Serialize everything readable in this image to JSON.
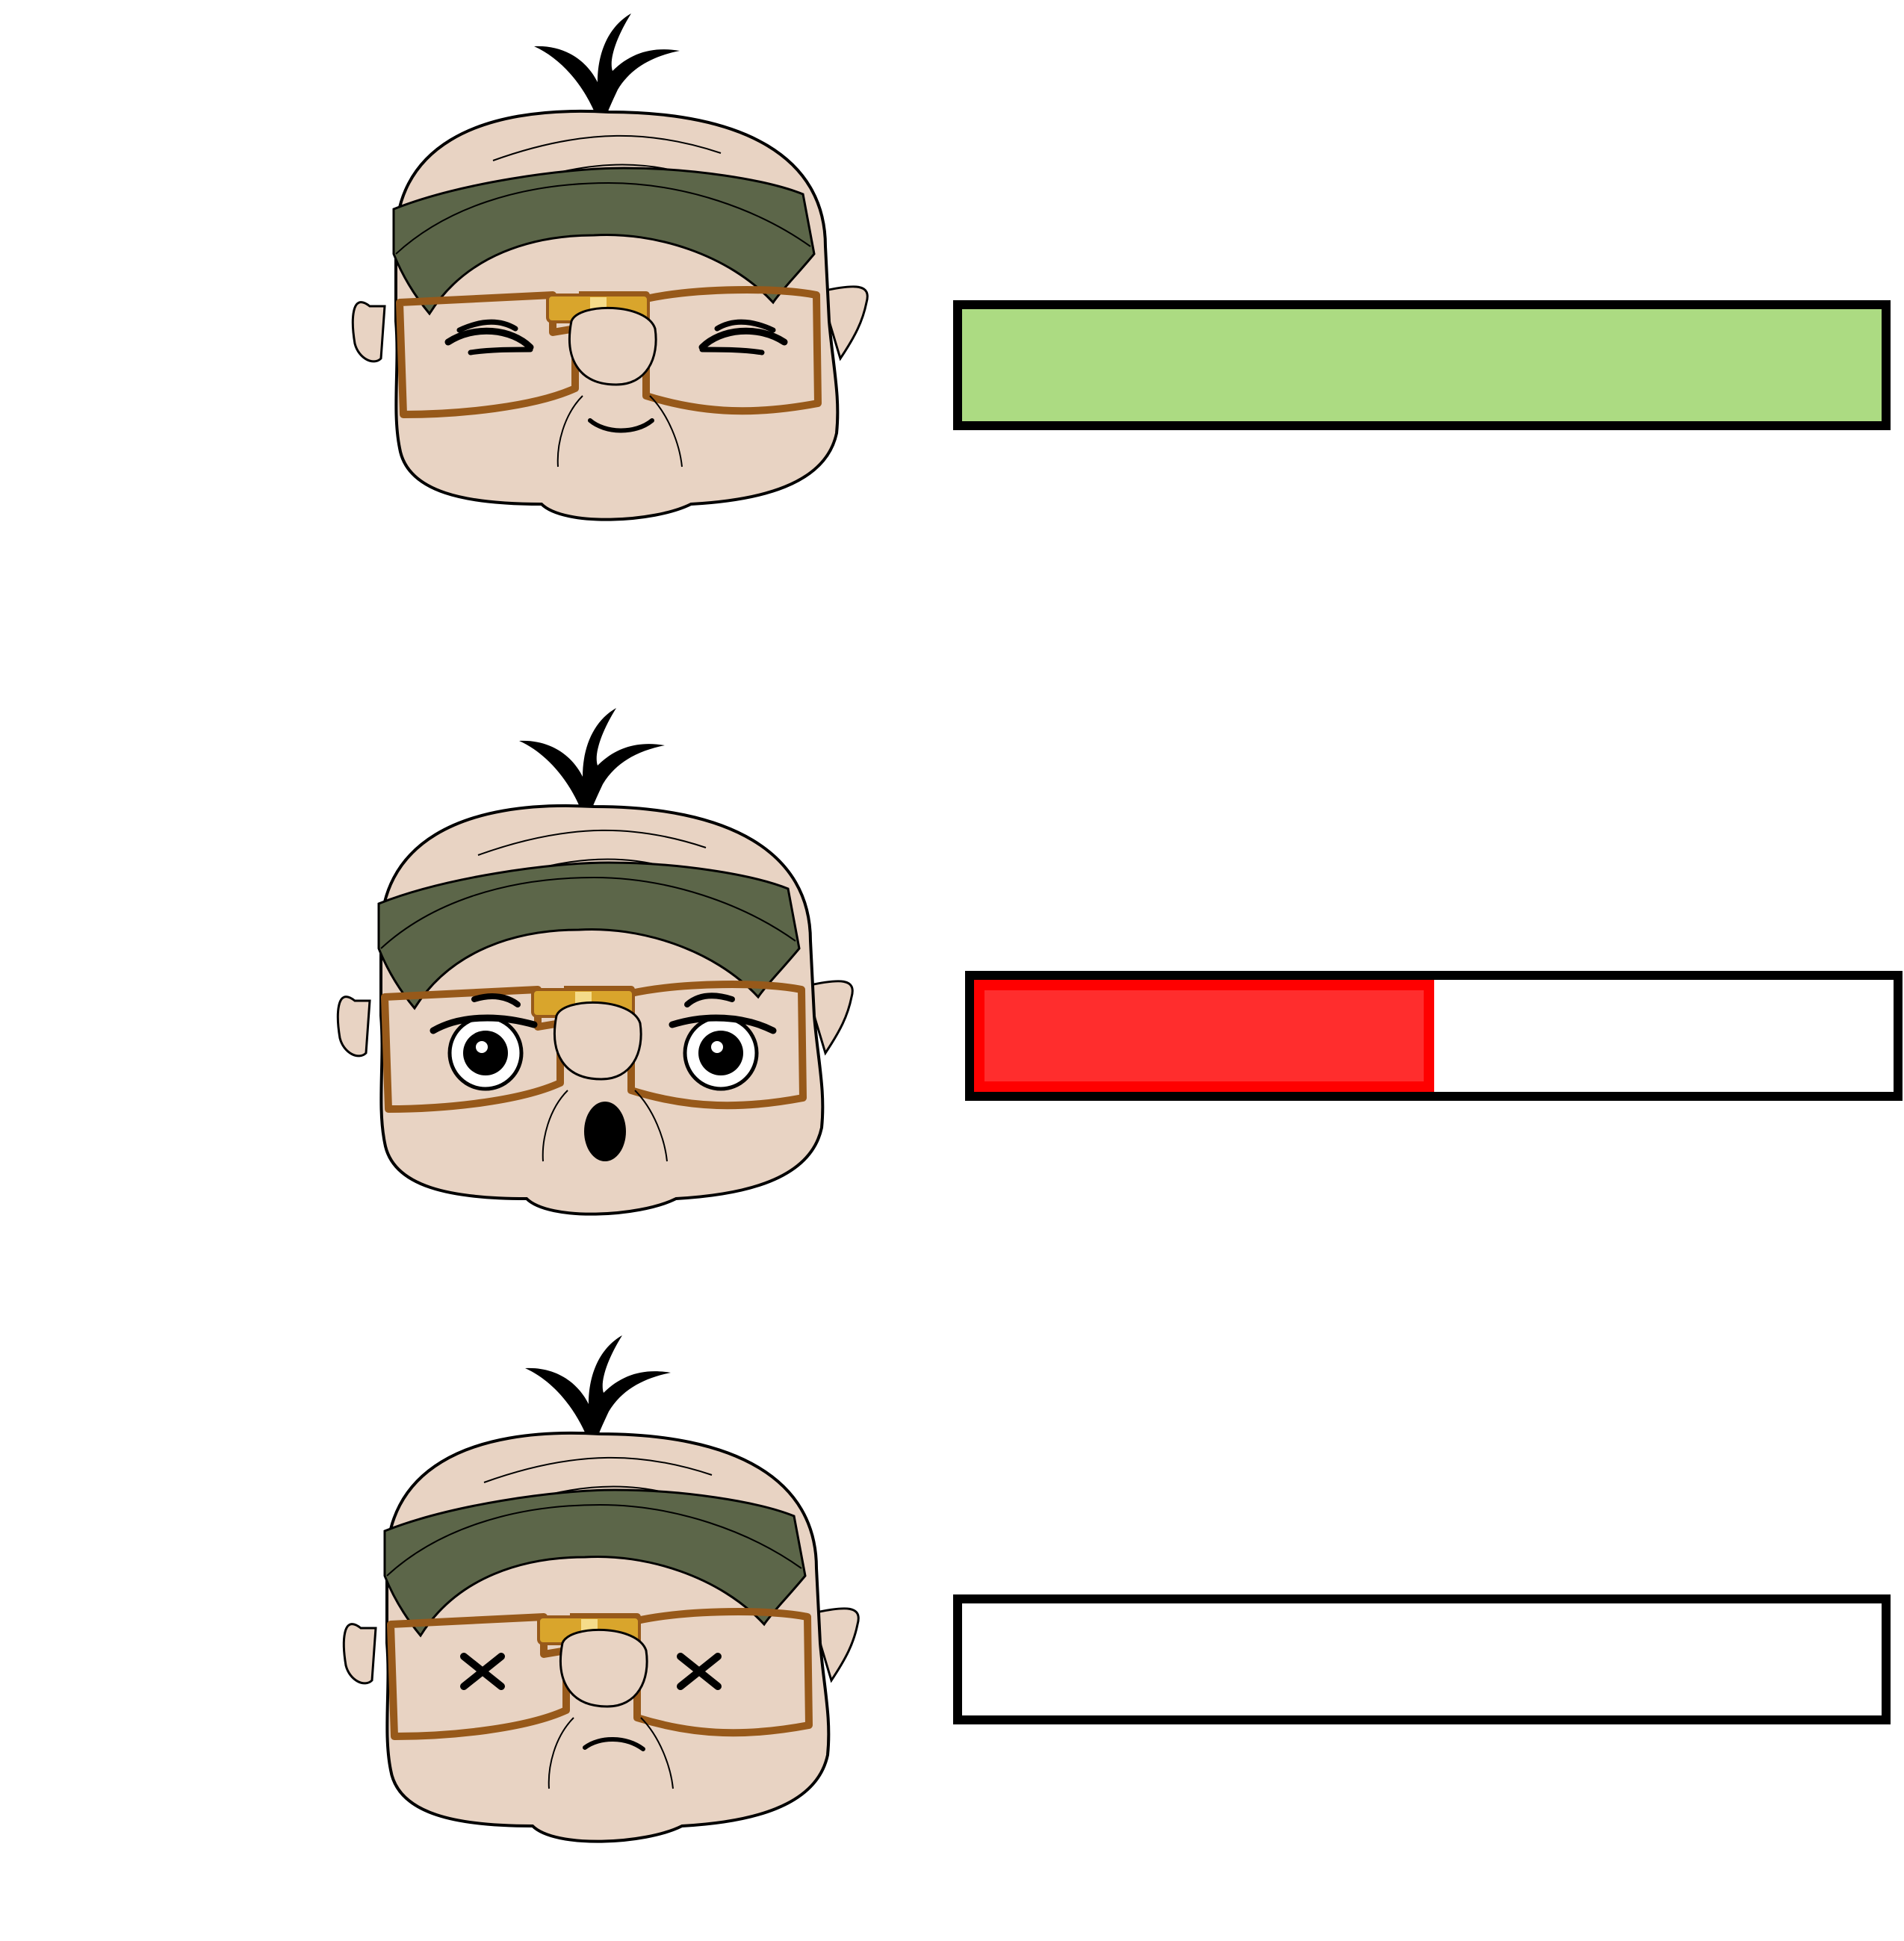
{
  "health_states": [
    {
      "expression": "happy",
      "face_icon": "happy-old-man-face-icon",
      "eyes": "squinting-closed",
      "mouth": "smile",
      "health_fraction": 1.0,
      "fill_color": "#acdb82",
      "fill_border_color": "#acdb82"
    },
    {
      "expression": "worried",
      "face_icon": "worried-old-man-face-icon",
      "eyes": "open-droopy",
      "mouth": "open-o",
      "health_fraction": 0.5,
      "fill_color": "#ff2d2d",
      "fill_border_color": "#ff0000"
    },
    {
      "expression": "knocked-out",
      "face_icon": "knocked-out-old-man-face-icon",
      "eyes": "x-x",
      "mouth": "frown",
      "health_fraction": 0.0,
      "fill_color": "#ffffff",
      "fill_border_color": "#ffffff"
    }
  ],
  "colors": {
    "skin": "#e8d3c3",
    "headband": "#5c6649",
    "glasses_frame": "#97591a",
    "glasses_bridge": "#d9a52c",
    "outline": "#000000",
    "bar_border": "#000000"
  }
}
